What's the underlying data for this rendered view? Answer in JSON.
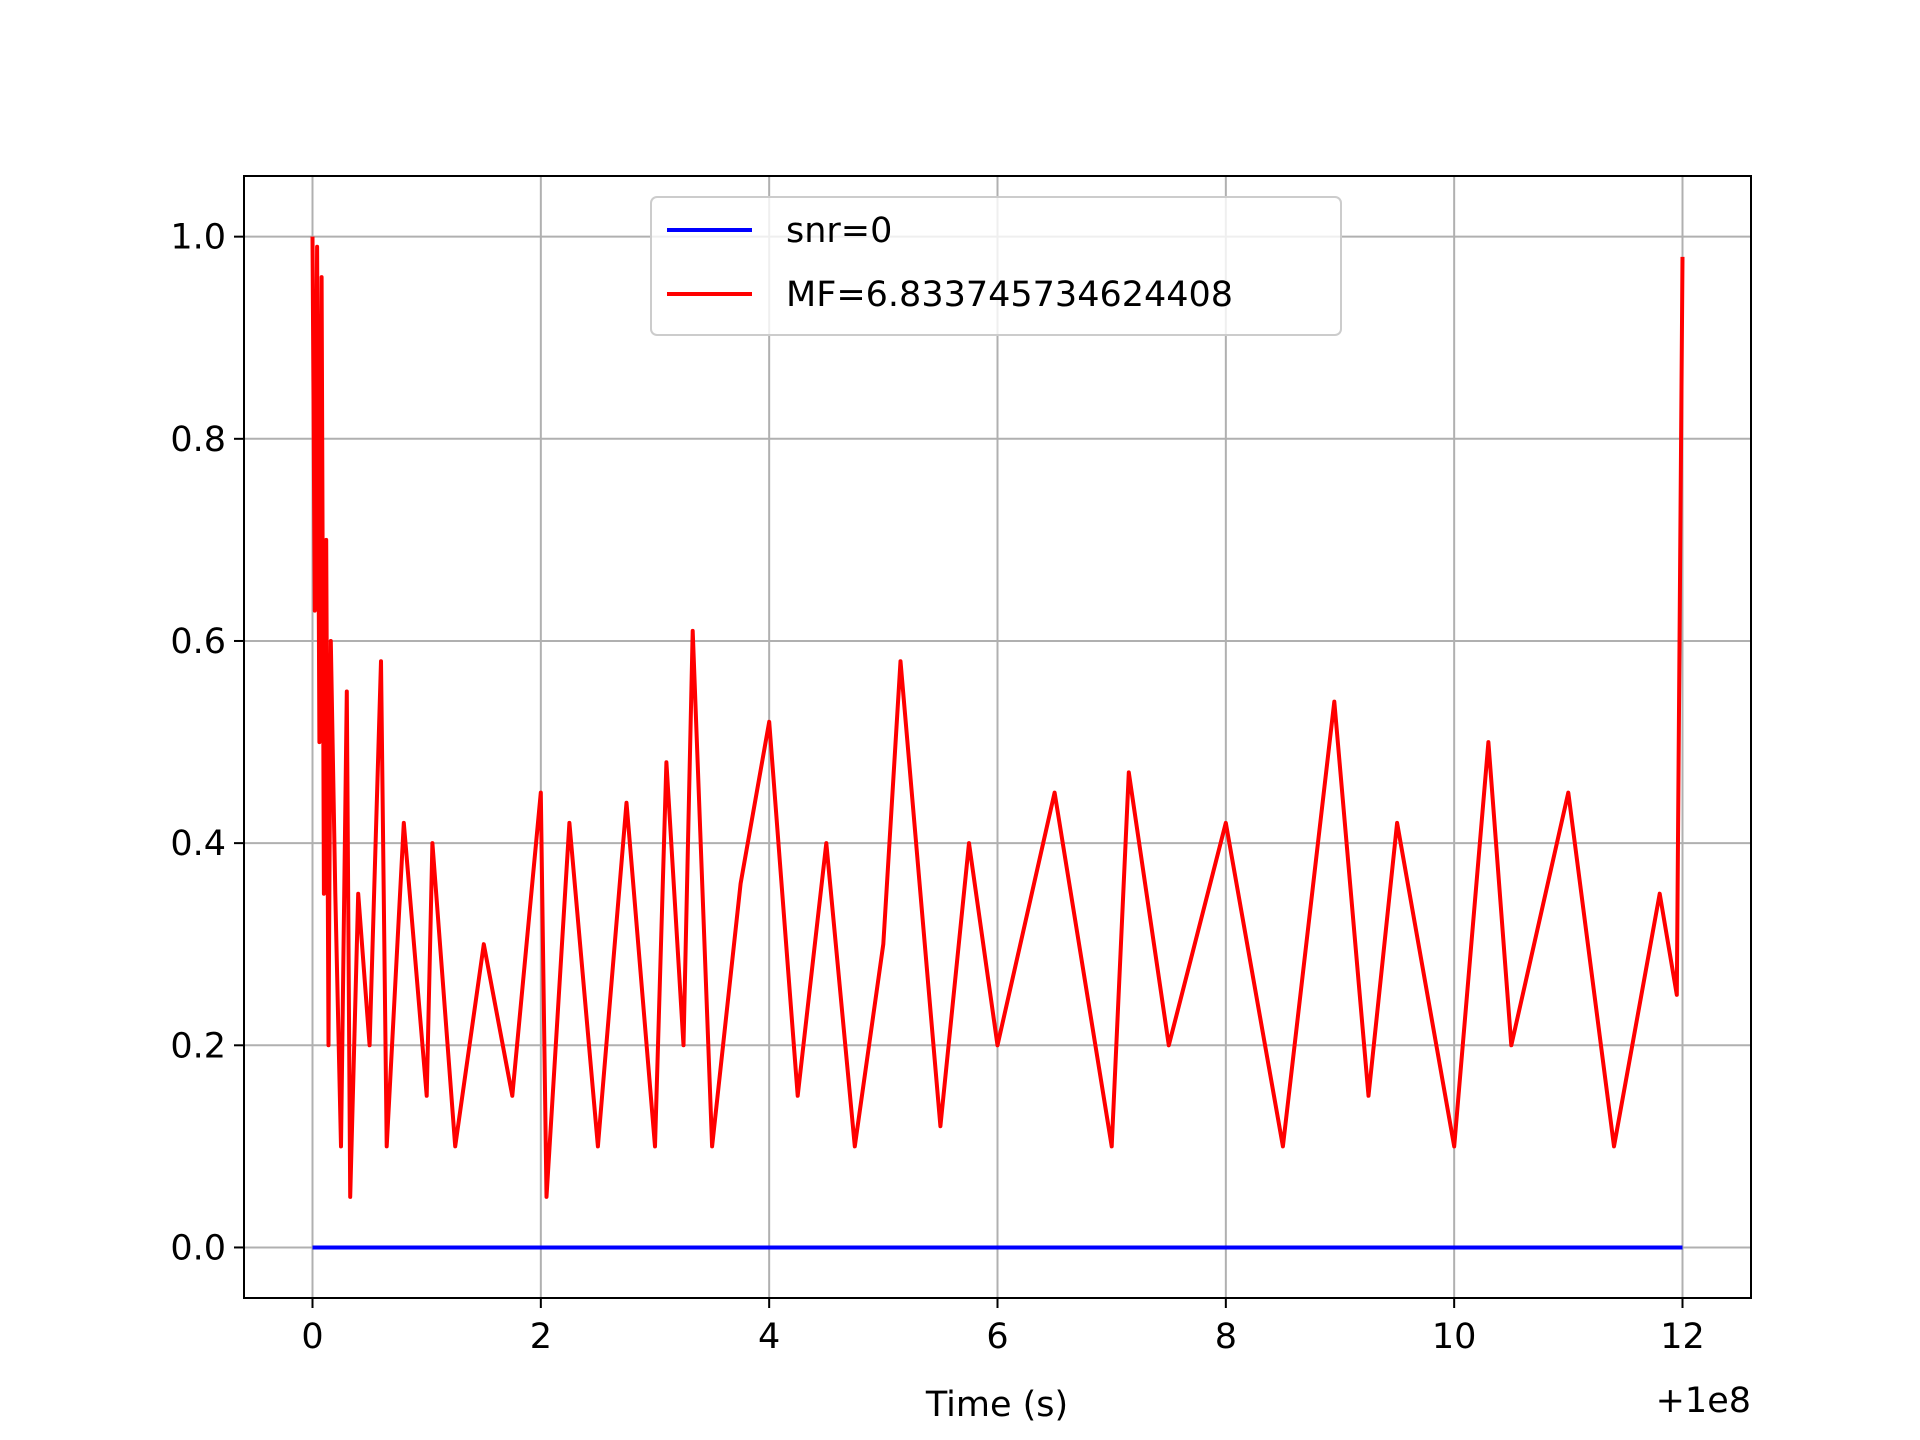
{
  "chart_data": {
    "type": "line",
    "title": "",
    "xlabel": "Time (s)",
    "ylabel": "",
    "x_offset_label": "+1e8",
    "xlim": [
      -0.6,
      12.6
    ],
    "ylim": [
      -0.05,
      1.06
    ],
    "x_ticks": [
      0,
      2,
      4,
      6,
      8,
      10,
      12
    ],
    "x_tick_labels": [
      "0",
      "2",
      "4",
      "6",
      "8",
      "10",
      "12"
    ],
    "y_ticks": [
      0.0,
      0.2,
      0.4,
      0.6,
      0.8,
      1.0
    ],
    "y_tick_labels": [
      "0.0",
      "0.2",
      "0.4",
      "0.6",
      "0.8",
      "1.0"
    ],
    "grid": true,
    "legend_position": "upper-center",
    "series": [
      {
        "name": "snr=0",
        "color": "#0000ff",
        "x": [
          0,
          12
        ],
        "y": [
          0.0,
          0.0
        ]
      },
      {
        "name": "MF=6.833745734624408",
        "color": "#ff0000",
        "x": [
          0.0,
          0.02,
          0.04,
          0.06,
          0.08,
          0.1,
          0.12,
          0.14,
          0.16,
          0.2,
          0.25,
          0.3,
          0.33,
          0.4,
          0.5,
          0.6,
          0.65,
          0.8,
          1.0,
          1.05,
          1.25,
          1.5,
          1.75,
          2.0,
          2.05,
          2.25,
          2.5,
          2.75,
          3.0,
          3.1,
          3.25,
          3.33,
          3.5,
          3.75,
          4.0,
          4.25,
          4.5,
          4.75,
          5.0,
          5.15,
          5.5,
          5.75,
          6.0,
          6.5,
          7.0,
          7.15,
          7.5,
          8.0,
          8.5,
          8.95,
          9.25,
          9.5,
          10.0,
          10.3,
          10.5,
          11.0,
          11.4,
          11.8,
          11.95,
          12.0
        ],
        "y": [
          1.0,
          0.63,
          0.99,
          0.5,
          0.96,
          0.35,
          0.7,
          0.2,
          0.6,
          0.35,
          0.1,
          0.55,
          0.05,
          0.35,
          0.2,
          0.58,
          0.1,
          0.42,
          0.15,
          0.4,
          0.1,
          0.3,
          0.15,
          0.45,
          0.05,
          0.42,
          0.1,
          0.44,
          0.1,
          0.48,
          0.2,
          0.61,
          0.1,
          0.36,
          0.52,
          0.15,
          0.4,
          0.1,
          0.3,
          0.58,
          0.12,
          0.4,
          0.2,
          0.45,
          0.1,
          0.47,
          0.2,
          0.42,
          0.1,
          0.54,
          0.15,
          0.42,
          0.1,
          0.5,
          0.2,
          0.45,
          0.1,
          0.35,
          0.25,
          0.98
        ]
      }
    ]
  }
}
